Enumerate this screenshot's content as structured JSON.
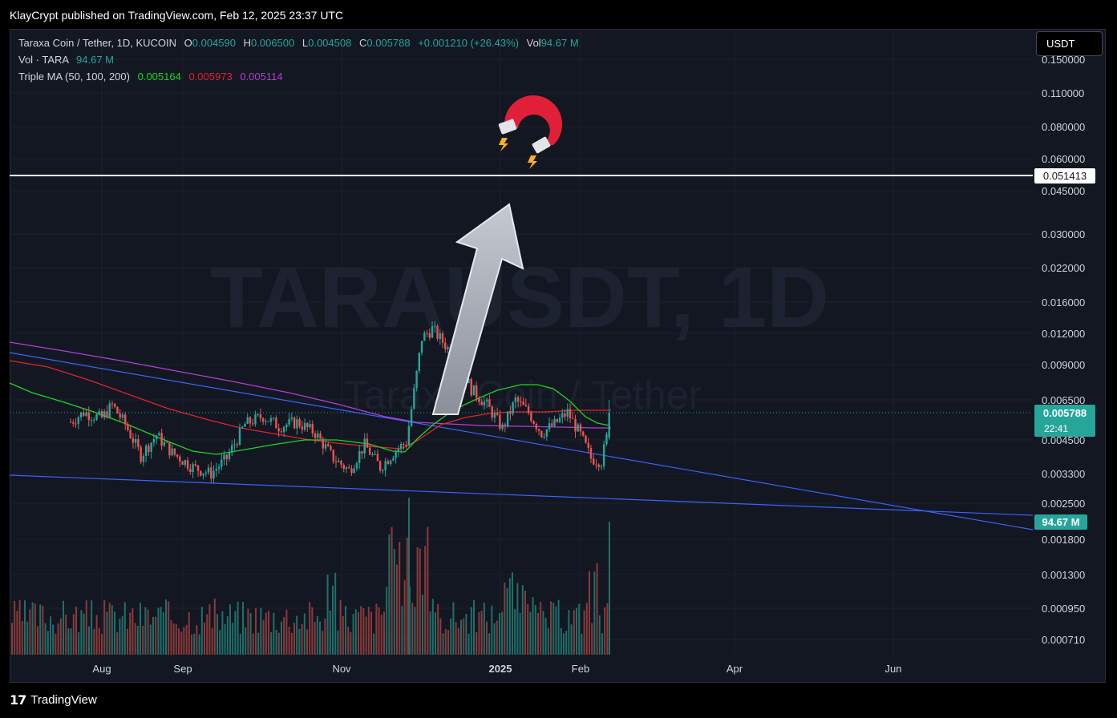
{
  "header": {
    "published": "KlayCrypt published on TradingView.com, Feb 12, 2025 23:37 UTC"
  },
  "legend": {
    "symbol": "Taraxa Coin / Tether, 1D, KUCOIN",
    "o_label": "O",
    "o_value": "0.004590",
    "h_label": "H",
    "h_value": "0.006500",
    "l_label": "L",
    "l_value": "0.004508",
    "c_label": "C",
    "c_value": "0.005788",
    "change": "+0.001210 (+26.43%)",
    "vol_label": "Vol",
    "vol_value": "94.67 M",
    "vol_series": "Vol · TARA",
    "vol_series_value": "94.67 M",
    "ma_label": "Triple MA (50, 100, 200)",
    "ma1": "0.005164",
    "ma2": "0.005973",
    "ma3": "0.005114"
  },
  "currency_button": "USDT",
  "watermark": {
    "main": "TARAUSDT, 1D",
    "sub": "Taraxa Coin / Tether"
  },
  "footer": {
    "brand": "TradingView"
  },
  "colors": {
    "up": "#26a69a",
    "down": "#ef5350",
    "ma50": "#1fd51f",
    "ma100": "#e0222d",
    "ma200": "#b23fd0",
    "trend": "#3366ff"
  },
  "chart_data": {
    "type": "candlestick",
    "scale": "log",
    "y_axis_ticks": [
      "0.150000",
      "0.110000",
      "0.080000",
      "0.060000",
      "0.045000",
      "0.030000",
      "0.022000",
      "0.016000",
      "0.012000",
      "0.009000",
      "0.006500",
      "0.004500",
      "0.003300",
      "0.002500",
      "0.001800",
      "0.001300",
      "0.000950",
      "0.000710"
    ],
    "x_axis_labels": [
      "Aug",
      "Sep",
      "Nov",
      "2025",
      "Feb",
      "Apr",
      "Jun"
    ],
    "ylim": [
      0.00066,
      0.17
    ],
    "horizontal_line": {
      "value": 0.051413,
      "label": "0.051413"
    },
    "last_price": {
      "value": 0.005788,
      "label": "0.005788",
      "countdown": "22:41"
    },
    "volume_label": "94.67 M",
    "close_series": [
      {
        "date": "2024-07-20",
        "close": 0.0053
      },
      {
        "date": "2024-07-25",
        "close": 0.0058
      },
      {
        "date": "2024-08-01",
        "close": 0.0055
      },
      {
        "date": "2024-08-05",
        "close": 0.0062
      },
      {
        "date": "2024-08-10",
        "close": 0.0052
      },
      {
        "date": "2024-08-16",
        "close": 0.0039
      },
      {
        "date": "2024-08-22",
        "close": 0.0047
      },
      {
        "date": "2024-08-28",
        "close": 0.004
      },
      {
        "date": "2024-09-05",
        "close": 0.0035
      },
      {
        "date": "2024-09-12",
        "close": 0.0033
      },
      {
        "date": "2024-09-18",
        "close": 0.0038
      },
      {
        "date": "2024-09-25",
        "close": 0.0052
      },
      {
        "date": "2024-10-02",
        "close": 0.0056
      },
      {
        "date": "2024-10-08",
        "close": 0.0051
      },
      {
        "date": "2024-10-15",
        "close": 0.0053
      },
      {
        "date": "2024-10-22",
        "close": 0.0048
      },
      {
        "date": "2024-10-29",
        "close": 0.0038
      },
      {
        "date": "2024-11-04",
        "close": 0.0034
      },
      {
        "date": "2024-11-10",
        "close": 0.0043
      },
      {
        "date": "2024-11-16",
        "close": 0.0035
      },
      {
        "date": "2024-11-22",
        "close": 0.0041
      },
      {
        "date": "2024-11-26",
        "close": 0.0044
      },
      {
        "date": "2024-11-29",
        "close": 0.007
      },
      {
        "date": "2024-12-02",
        "close": 0.0115
      },
      {
        "date": "2024-12-06",
        "close": 0.0125
      },
      {
        "date": "2024-12-11",
        "close": 0.0108
      },
      {
        "date": "2024-12-16",
        "close": 0.0092
      },
      {
        "date": "2024-12-21",
        "close": 0.0072
      },
      {
        "date": "2024-12-27",
        "close": 0.0062
      },
      {
        "date": "2025-01-02",
        "close": 0.005
      },
      {
        "date": "2025-01-07",
        "close": 0.0065
      },
      {
        "date": "2025-01-12",
        "close": 0.0058
      },
      {
        "date": "2025-01-17",
        "close": 0.0048
      },
      {
        "date": "2025-01-22",
        "close": 0.0052
      },
      {
        "date": "2025-01-27",
        "close": 0.0058
      },
      {
        "date": "2025-02-01",
        "close": 0.0047
      },
      {
        "date": "2025-02-05",
        "close": 0.0038
      },
      {
        "date": "2025-02-09",
        "close": 0.0037
      },
      {
        "date": "2025-02-11",
        "close": 0.0046
      },
      {
        "date": "2025-02-12",
        "close": 0.005788
      }
    ]
  }
}
